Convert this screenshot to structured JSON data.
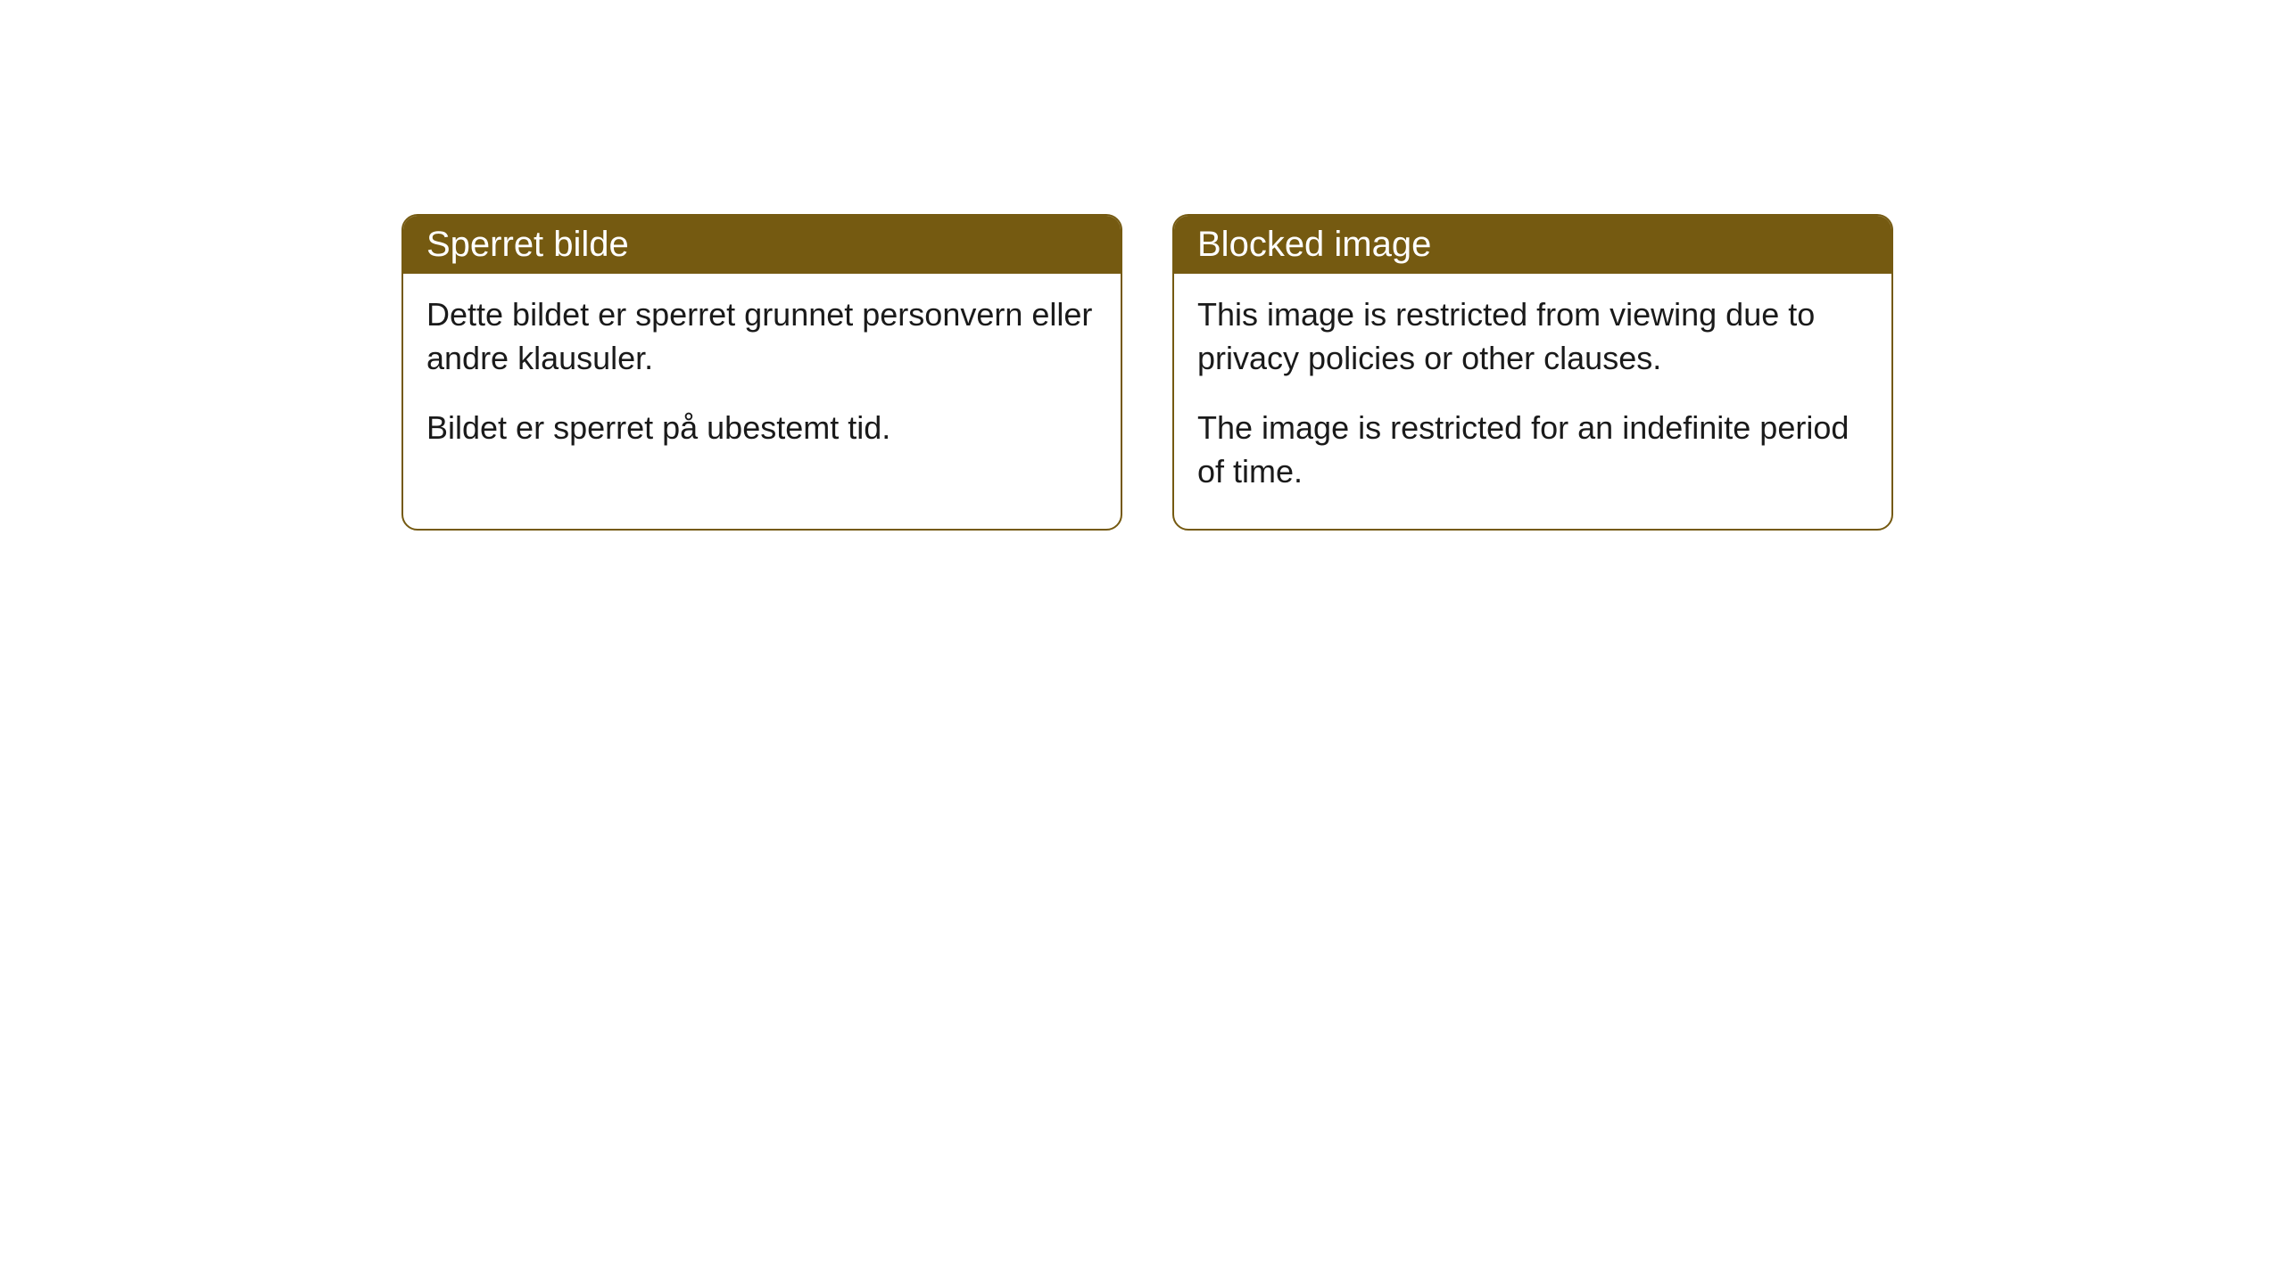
{
  "cards": [
    {
      "title": "Sperret bilde",
      "paragraph1": "Dette bildet er sperret grunnet personvern eller andre klausuler.",
      "paragraph2": "Bildet er sperret på ubestemt tid."
    },
    {
      "title": "Blocked image",
      "paragraph1": "This image is restricted from viewing due to privacy policies or other clauses.",
      "paragraph2": "The image is restricted for an indefinite period of time."
    }
  ],
  "styling": {
    "header_bg_color": "#755a11",
    "header_text_color": "#ffffff",
    "border_color": "#755a11",
    "body_text_color": "#1a1a1a",
    "background_color": "#ffffff",
    "border_radius": 18,
    "title_font_size": 40,
    "body_font_size": 36
  }
}
